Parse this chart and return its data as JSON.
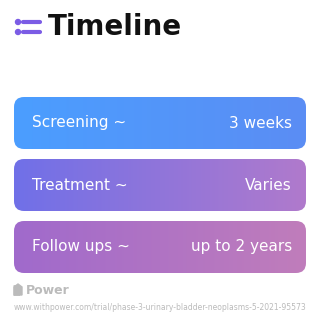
{
  "title": "Timeline",
  "title_fontsize": 20,
  "title_color": "#111111",
  "title_bold": true,
  "icon_color": "#7B5CE5",
  "background_color": "#ffffff",
  "rows": [
    {
      "label": "Screening ~",
      "value": "3 weeks",
      "color_left": "#4B9EFF",
      "color_right": "#5B8DF4"
    },
    {
      "label": "Treatment ~",
      "value": "Varies",
      "color_left": "#7070E8",
      "color_right": "#B07ACC"
    },
    {
      "label": "Follow ups ~",
      "value": "up to 2 years",
      "color_left": "#A06ACC",
      "color_right": "#C07DBB"
    }
  ],
  "text_fontsize": 11,
  "footer_text": "Power",
  "footer_url": "www.withpower.com/trial/phase-3-urinary-bladder-neoplasms-5-2021-95573",
  "footer_fontsize": 5.5,
  "footer_color": "#bbbbbb",
  "power_icon_color": "#bbbbbb"
}
